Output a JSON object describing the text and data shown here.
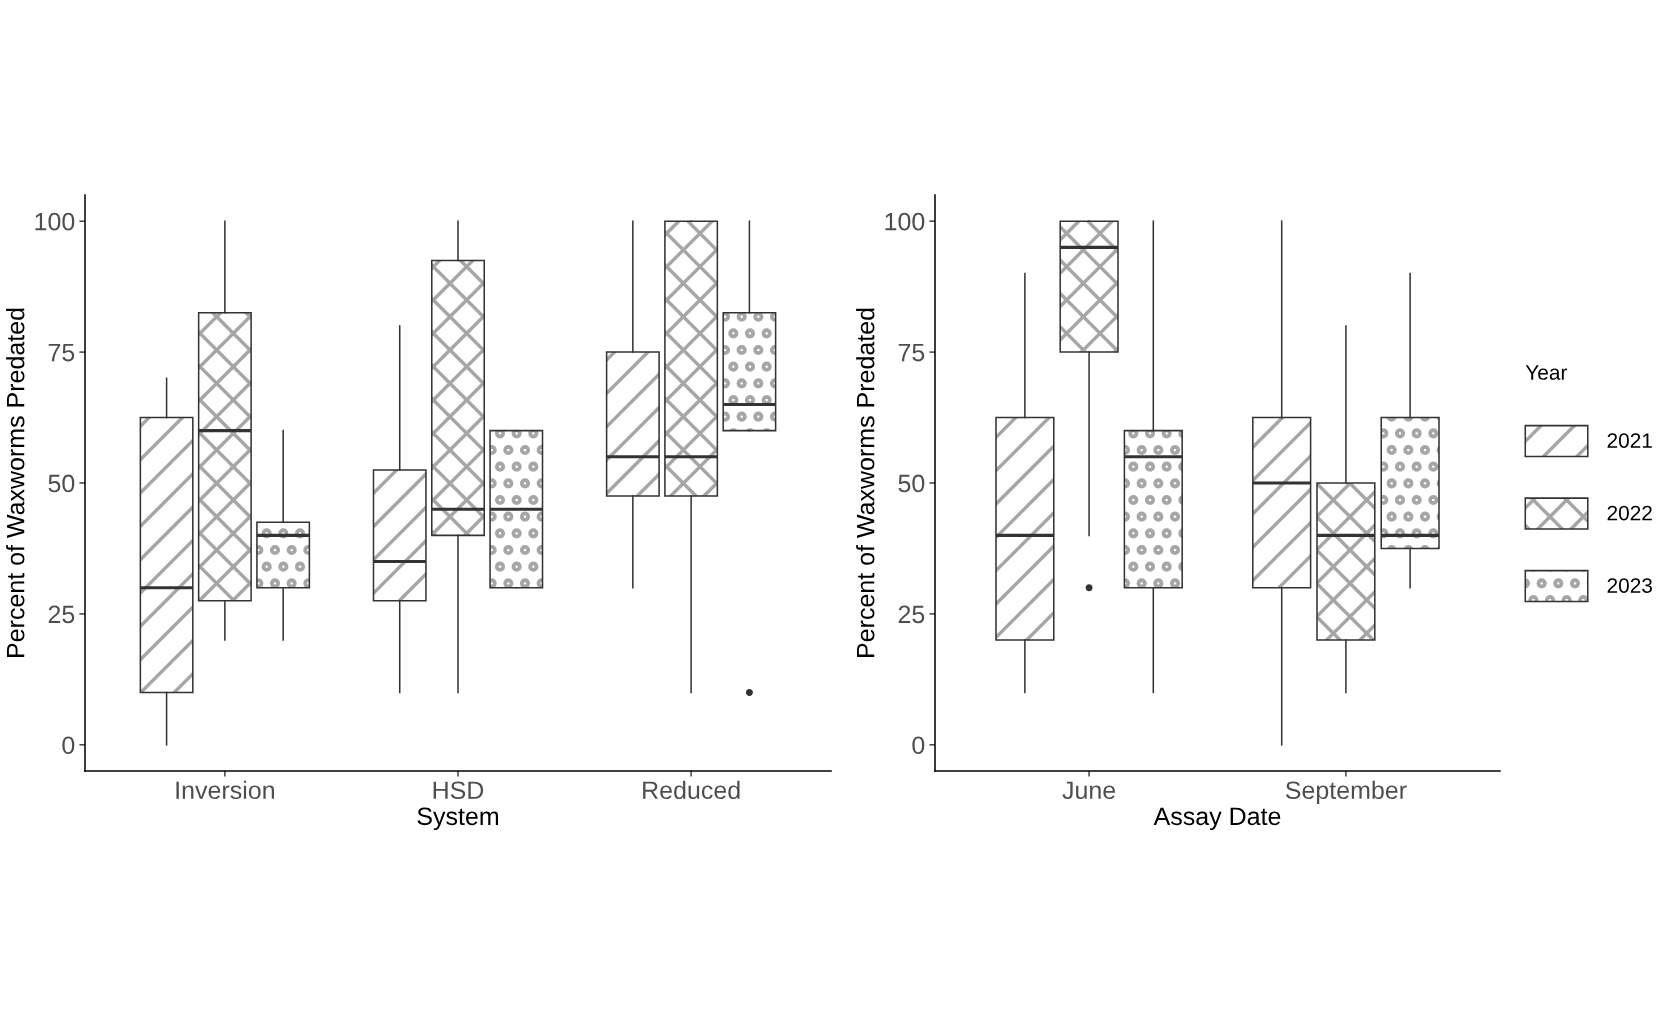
{
  "chart_data": [
    {
      "type": "box",
      "xlabel": "System",
      "ylabel": "Percent of Waxworms Predated",
      "categories": [
        "Inversion",
        "HSD",
        "Reduced"
      ],
      "ylim": [
        -5,
        105
      ],
      "yticks": [
        0,
        25,
        50,
        75,
        100
      ],
      "legend": "right",
      "legend_title": "Year",
      "series": [
        {
          "name": "2021",
          "color": "#333333",
          "boxes": [
            {
              "low": 0,
              "q1": 10,
              "median": 30,
              "q3": 62.5,
              "high": 70
            },
            {
              "low": 10,
              "q1": 27.5,
              "median": 35,
              "q3": 52.5,
              "high": 80
            },
            {
              "low": 30,
              "q1": 47.5,
              "median": 55,
              "q3": 75,
              "high": 100
            }
          ]
        },
        {
          "name": "2022",
          "color": "#333333",
          "boxes": [
            {
              "low": 20,
              "q1": 27.5,
              "median": 60,
              "q3": 82.5,
              "high": 100
            },
            {
              "low": 10,
              "q1": 40,
              "median": 45,
              "q3": 92.5,
              "high": 100
            },
            {
              "low": 10,
              "q1": 47.5,
              "median": 55,
              "q3": 100,
              "high": 100
            }
          ]
        },
        {
          "name": "2023",
          "color": "#333333",
          "boxes": [
            {
              "low": 20,
              "q1": 30,
              "median": 40,
              "q3": 42.5,
              "high": 60
            },
            {
              "low": 30,
              "q1": 30,
              "median": 45,
              "q3": 60,
              "high": 60
            },
            {
              "low": 60,
              "q1": 60,
              "median": 65,
              "q3": 82.5,
              "high": 100,
              "outliers": [
                10
              ]
            }
          ]
        }
      ]
    },
    {
      "type": "box",
      "xlabel": "Assay Date",
      "ylabel": "Percent of Waxworms Predated",
      "categories": [
        "June",
        "September"
      ],
      "ylim": [
        -5,
        105
      ],
      "yticks": [
        0,
        25,
        50,
        75,
        100
      ],
      "legend": "right",
      "series": [
        {
          "name": "2021",
          "color": "#333333",
          "boxes": [
            {
              "low": 10,
              "q1": 20,
              "median": 40,
              "q3": 62.5,
              "high": 90
            },
            {
              "low": 0,
              "q1": 30,
              "median": 50,
              "q3": 62.5,
              "high": 100
            }
          ]
        },
        {
          "name": "2022",
          "color": "#333333",
          "boxes": [
            {
              "low": 40,
              "q1": 75,
              "median": 95,
              "q3": 100,
              "high": 100,
              "outliers": [
                30
              ]
            },
            {
              "low": 10,
              "q1": 20,
              "median": 40,
              "q3": 50,
              "high": 80
            }
          ]
        },
        {
          "name": "2023",
          "color": "#333333",
          "boxes": [
            {
              "low": 10,
              "q1": 30,
              "median": 55,
              "q3": 60,
              "high": 100
            },
            {
              "low": 30,
              "q1": 37.5,
              "median": 40,
              "q3": 62.5,
              "high": 90
            }
          ]
        }
      ]
    }
  ]
}
